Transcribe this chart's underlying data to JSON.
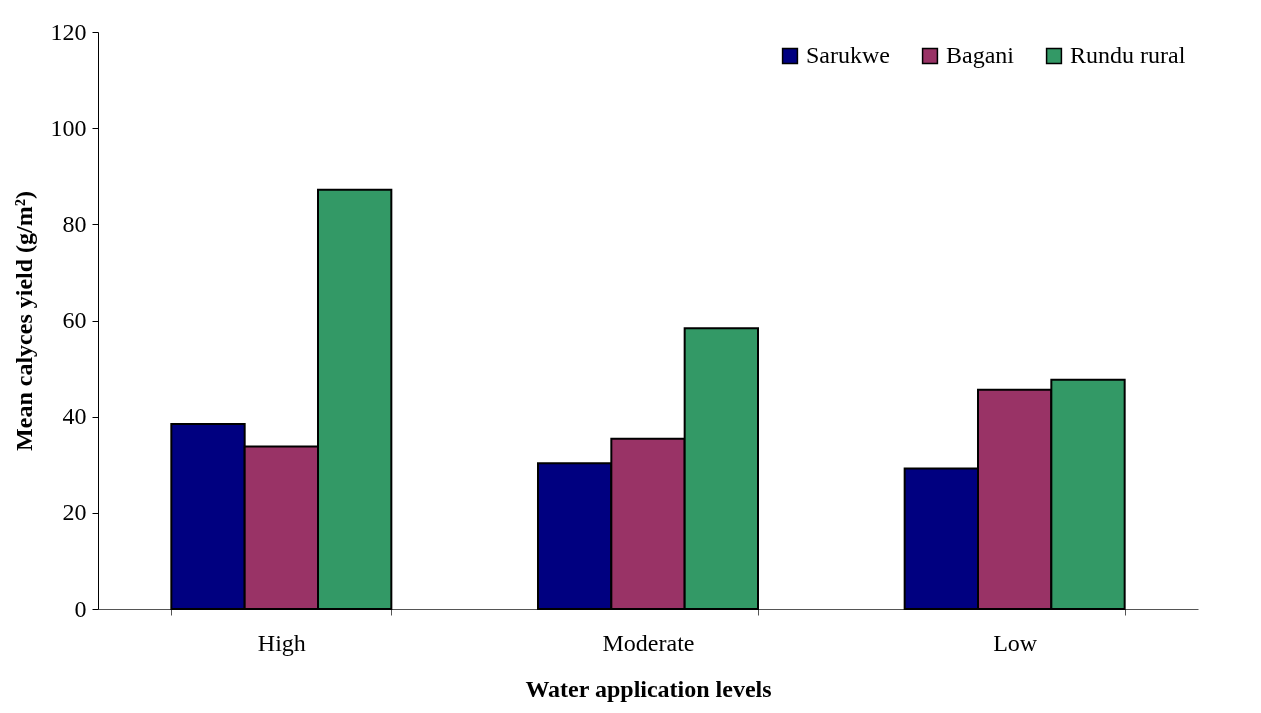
{
  "chart_data": {
    "type": "bar",
    "xlabel": "Water application levels",
    "ylabel": "Mean calyces yield (g/m²)",
    "categories": [
      "High",
      "Moderate",
      "Low"
    ],
    "series": [
      {
        "name": "Sarukwe",
        "color": "#000080",
        "values": [
          38.5,
          30.3,
          29.2
        ]
      },
      {
        "name": "Bagani",
        "color": "#993366",
        "values": [
          33.8,
          35.4,
          45.6
        ]
      },
      {
        "name": "Rundu rural",
        "color": "#339966",
        "values": [
          87.2,
          58.4,
          47.7
        ]
      }
    ],
    "ylim": [
      0,
      120
    ],
    "yticks": [
      0,
      20,
      40,
      60,
      80,
      100,
      120
    ],
    "legend": "top right"
  }
}
